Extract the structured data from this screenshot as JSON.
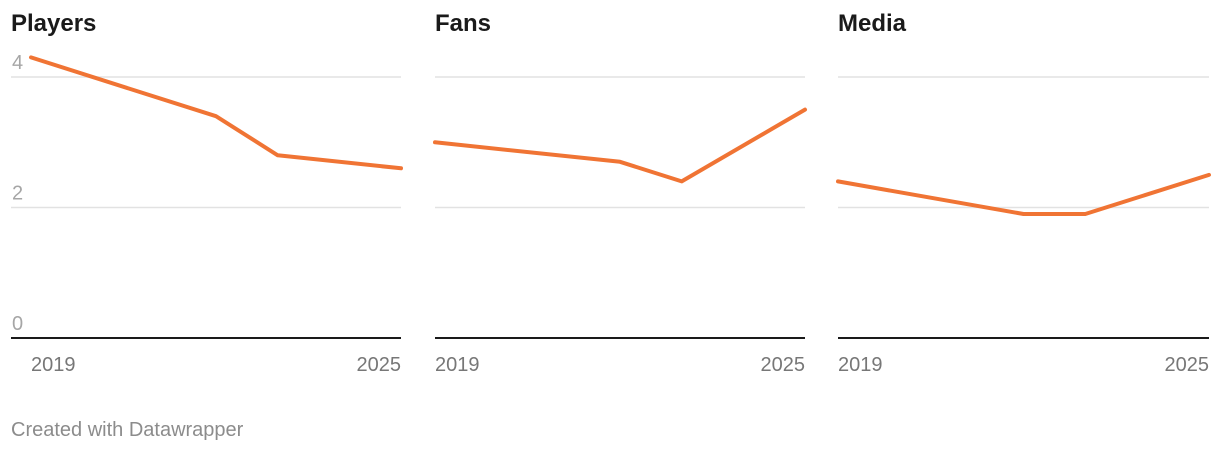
{
  "footer": {
    "credit": "Created with Datawrapper"
  },
  "colors": {
    "line": "#f07434",
    "grid": "#e2e2e2",
    "axis": "#1a1a1a",
    "tick_text": "#a6a6a6",
    "x_text": "#777777"
  },
  "chart_data": [
    {
      "type": "line",
      "title": "Players",
      "x": [
        2019,
        2022,
        2023,
        2025
      ],
      "y": [
        4.3,
        3.4,
        2.8,
        2.6
      ],
      "xticks": [
        "2019",
        "2025"
      ],
      "yticks": [
        "0",
        "2",
        "4"
      ],
      "xlim": [
        2019,
        2025
      ],
      "ylim": [
        0,
        4
      ]
    },
    {
      "type": "line",
      "title": "Fans",
      "x": [
        2019,
        2022,
        2023,
        2025
      ],
      "y": [
        3.0,
        2.7,
        2.4,
        3.5
      ],
      "xticks": [
        "2019",
        "2025"
      ],
      "yticks": [
        "0",
        "2",
        "4"
      ],
      "xlim": [
        2019,
        2025
      ],
      "ylim": [
        0,
        4
      ]
    },
    {
      "type": "line",
      "title": "Media",
      "x": [
        2019,
        2022,
        2023,
        2025
      ],
      "y": [
        2.4,
        1.9,
        1.9,
        2.5
      ],
      "xticks": [
        "2019",
        "2025"
      ],
      "yticks": [
        "0",
        "2",
        "4"
      ],
      "xlim": [
        2019,
        2025
      ],
      "ylim": [
        0,
        4
      ]
    }
  ]
}
